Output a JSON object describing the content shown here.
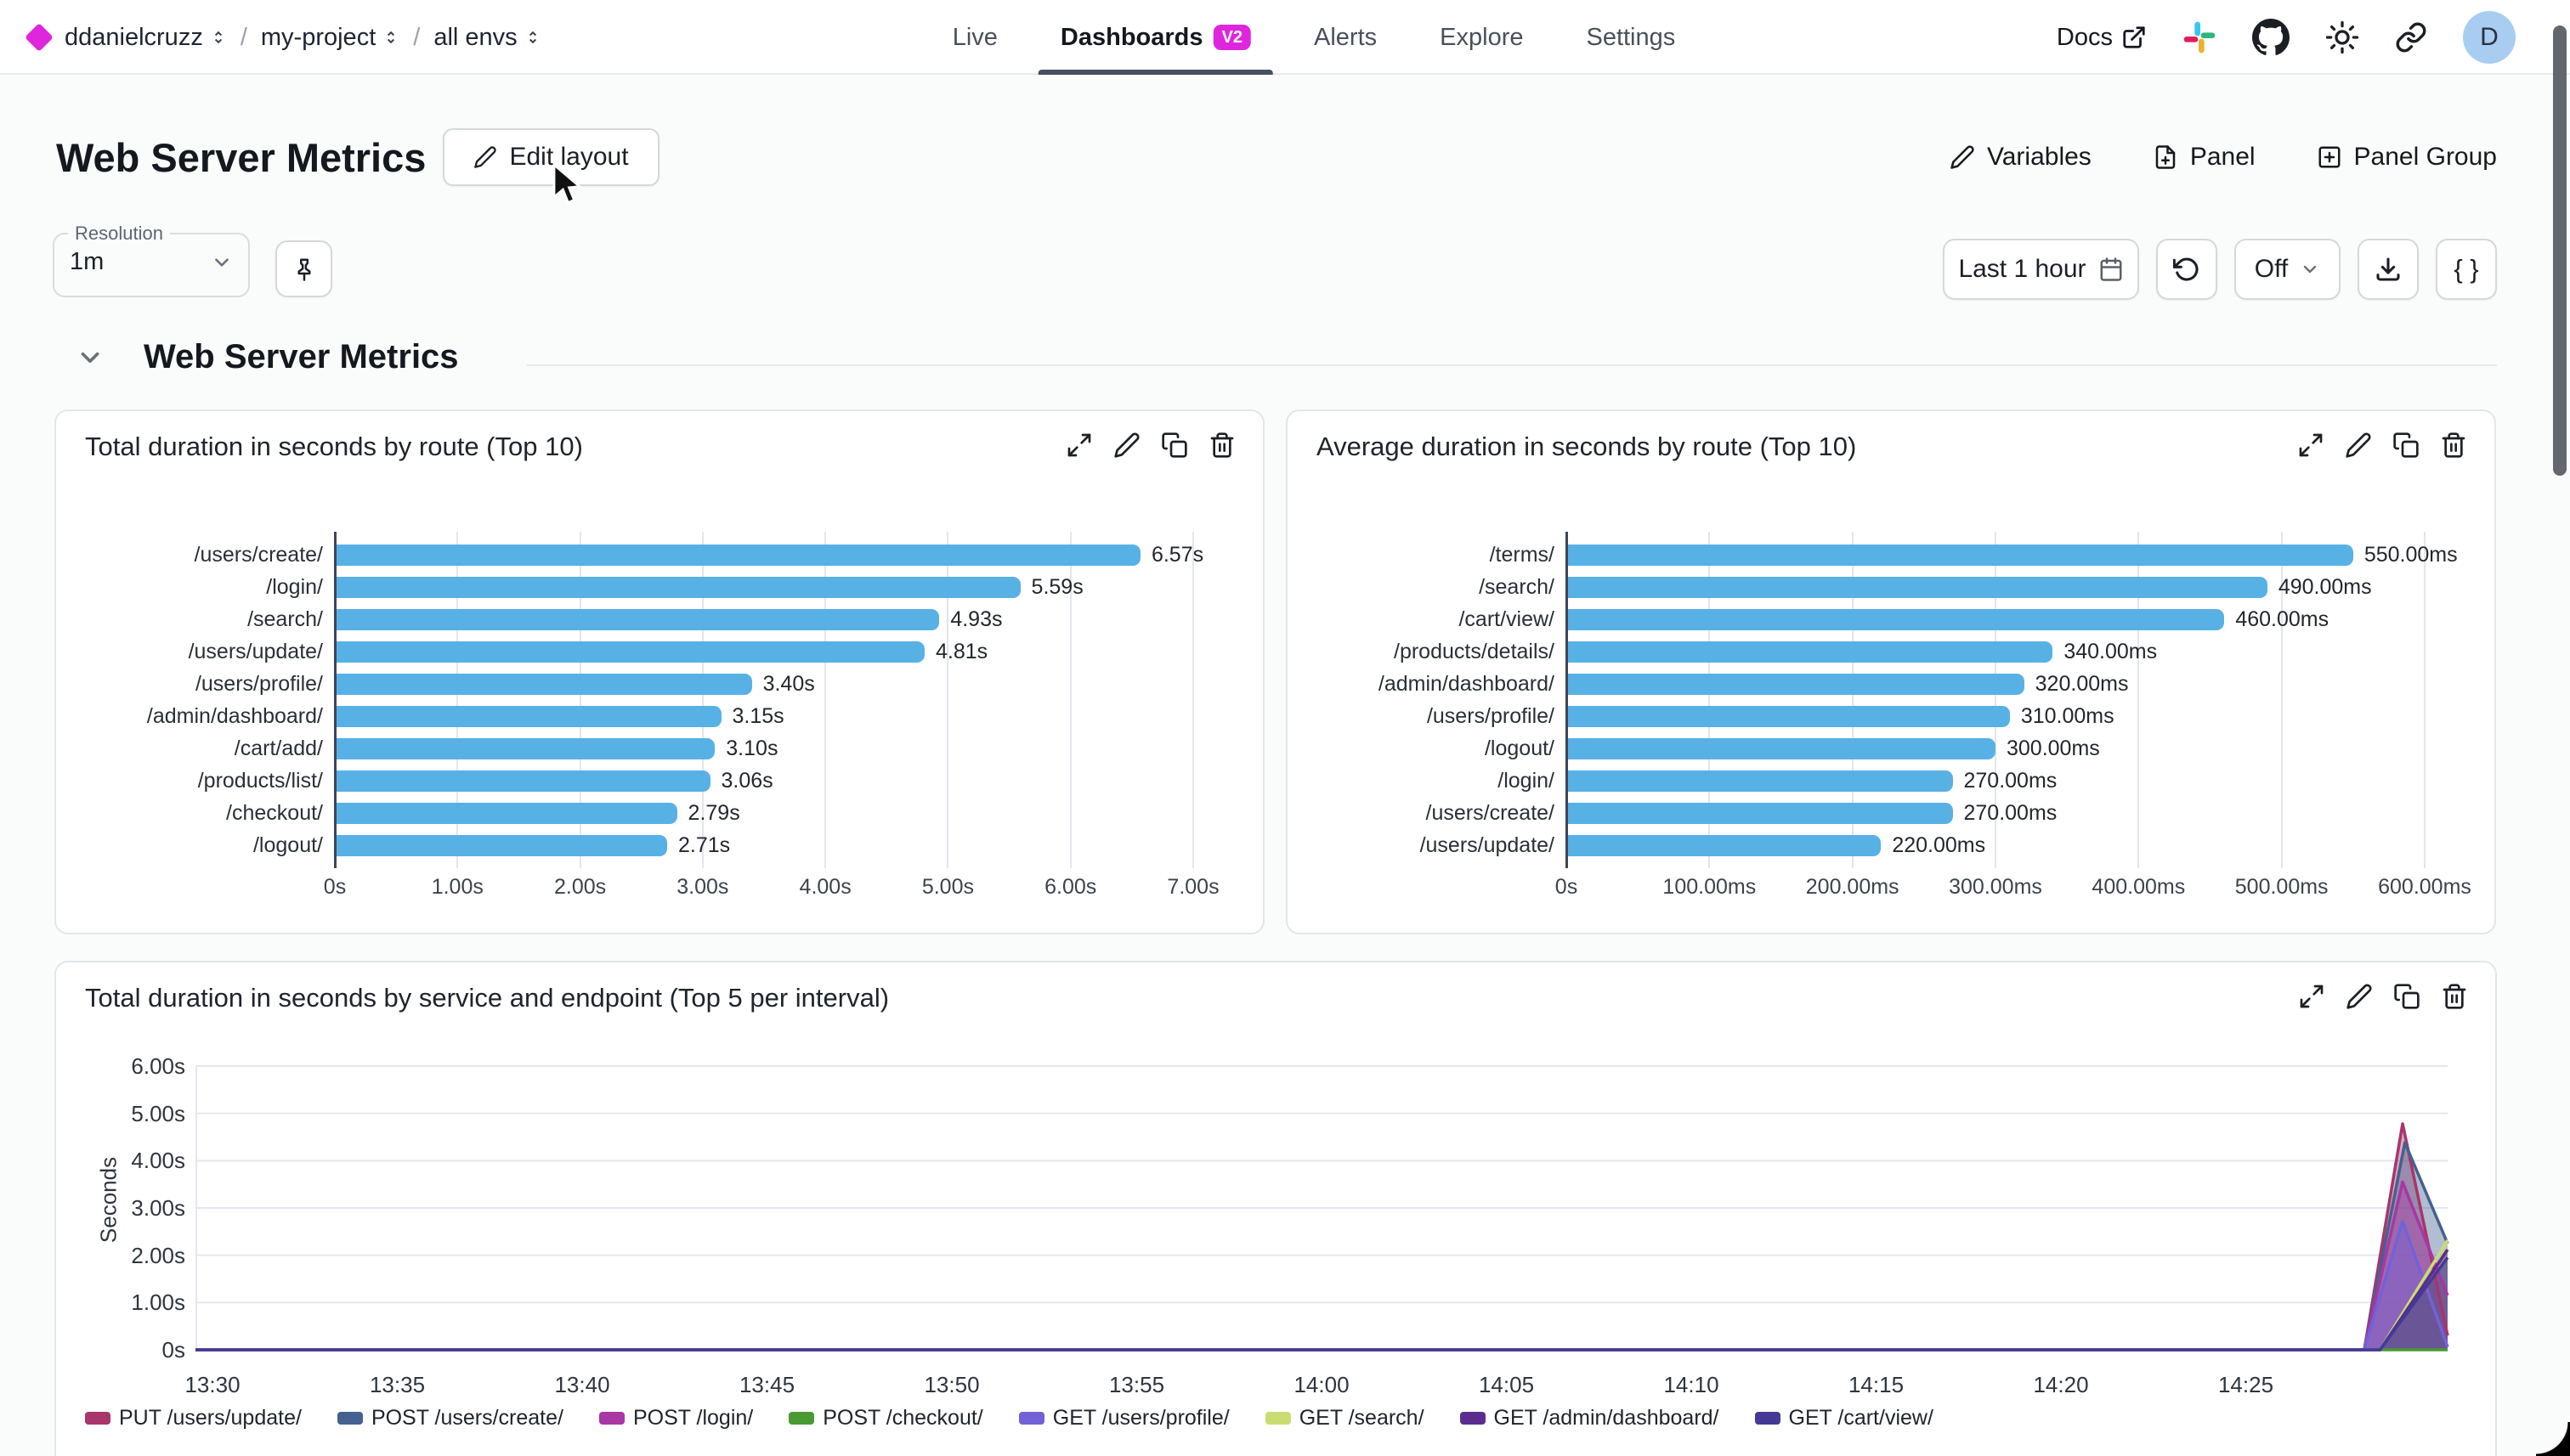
{
  "nav": {
    "breadcrumbs": [
      "ddanielcruzz",
      "my-project",
      "all envs"
    ],
    "tabs": [
      {
        "label": "Live"
      },
      {
        "label": "Dashboards",
        "badge": "V2",
        "active": true
      },
      {
        "label": "Alerts"
      },
      {
        "label": "Explore"
      },
      {
        "label": "Settings"
      }
    ],
    "docs_label": "Docs",
    "avatar_initial": "D"
  },
  "header": {
    "title": "Web Server Metrics",
    "edit_layout": "Edit layout",
    "variables": "Variables",
    "panel": "Panel",
    "panel_group": "Panel Group"
  },
  "toolbar": {
    "resolution_label": "Resolution",
    "resolution_value": "1m",
    "time_range": "Last 1 hour",
    "auto_refresh": "Off",
    "json_button": "{ }"
  },
  "section": {
    "title": "Web Server Metrics"
  },
  "colors": {
    "accent_magenta": "#df26dd",
    "bar_blue": "#57b1e5",
    "active_tab_underline": "#454f61",
    "avatar_bg": "#a9cdf1"
  },
  "icons": [
    "diamond-logo",
    "external-link-icon",
    "slack-icon",
    "github-icon",
    "sun-icon",
    "link-icon",
    "pencil-icon",
    "file-plus-icon",
    "plus-square-icon",
    "pin-icon",
    "calendar-icon",
    "refresh-icon",
    "download-icon",
    "chevron-down-icon",
    "expand-icon",
    "copy-icon",
    "trash-icon"
  ],
  "chart_data": [
    {
      "type": "bar",
      "orientation": "horizontal",
      "title": "Total duration in seconds by route (Top 10)",
      "categories": [
        "/users/create/",
        "/login/",
        "/search/",
        "/users/update/",
        "/users/profile/",
        "/admin/dashboard/",
        "/cart/add/",
        "/products/list/",
        "/checkout/",
        "/logout/"
      ],
      "values": [
        6.57,
        5.59,
        4.93,
        4.81,
        3.4,
        3.15,
        3.1,
        3.06,
        2.79,
        2.71
      ],
      "value_labels": [
        "6.57s",
        "5.59s",
        "4.93s",
        "4.81s",
        "3.40s",
        "3.15s",
        "3.10s",
        "3.06s",
        "2.79s",
        "2.71s"
      ],
      "xlim": [
        0,
        7
      ],
      "x_ticks": [
        "0s",
        "1.00s",
        "2.00s",
        "3.00s",
        "4.00s",
        "5.00s",
        "6.00s",
        "7.00s"
      ],
      "bar_color": "#57b1e5",
      "grid": true
    },
    {
      "type": "bar",
      "orientation": "horizontal",
      "title": "Average duration in seconds by route (Top 10)",
      "categories": [
        "/terms/",
        "/search/",
        "/cart/view/",
        "/products/details/",
        "/admin/dashboard/",
        "/users/profile/",
        "/logout/",
        "/login/",
        "/users/create/",
        "/users/update/"
      ],
      "values": [
        550,
        490,
        460,
        340,
        320,
        310,
        300,
        270,
        270,
        220
      ],
      "value_labels": [
        "550.00ms",
        "490.00ms",
        "460.00ms",
        "340.00ms",
        "320.00ms",
        "310.00ms",
        "300.00ms",
        "270.00ms",
        "270.00ms",
        "220.00ms"
      ],
      "xlim": [
        0,
        600
      ],
      "x_ticks": [
        "0s",
        "100.00ms",
        "200.00ms",
        "300.00ms",
        "400.00ms",
        "500.00ms",
        "600.00ms"
      ],
      "bar_color": "#57b1e5",
      "grid": true
    },
    {
      "type": "area",
      "title": "Total duration in seconds by service and endpoint (Top 5 per interval)",
      "ylabel": "Seconds",
      "ylim": [
        0,
        6
      ],
      "y_ticks": [
        "0s",
        "1.00s",
        "2.00s",
        "3.00s",
        "4.00s",
        "5.00s",
        "6.00s"
      ],
      "x_ticks": [
        "13:30",
        "13:35",
        "13:40",
        "13:45",
        "13:50",
        "13:55",
        "14:00",
        "14:05",
        "14:10",
        "14:15",
        "14:20",
        "14:25"
      ],
      "legend_position": "bottom",
      "grid": true,
      "series": [
        {
          "name": "PUT /users/update/",
          "color": "#a8356b",
          "points": [
            [
              0,
              0
            ],
            [
              0.963,
              0
            ],
            [
              0.98,
              4.78
            ],
            [
              1,
              0.3
            ]
          ]
        },
        {
          "name": "POST /users/create/",
          "color": "#44618f",
          "points": [
            [
              0,
              0
            ],
            [
              0.963,
              0
            ],
            [
              0.981,
              4.38
            ],
            [
              1,
              2.25
            ]
          ]
        },
        {
          "name": "POST /login/",
          "color": "#a836a4",
          "points": [
            [
              0,
              0
            ],
            [
              0.963,
              0
            ],
            [
              0.98,
              3.55
            ],
            [
              1,
              1.15
            ]
          ]
        },
        {
          "name": "POST /checkout/",
          "color": "#4a9a34",
          "points": [
            [
              0,
              0
            ],
            [
              1,
              0
            ]
          ]
        },
        {
          "name": "GET /users/profile/",
          "color": "#7262d8",
          "points": [
            [
              0,
              0
            ],
            [
              0.963,
              0
            ],
            [
              0.98,
              2.72
            ],
            [
              1,
              0.06
            ]
          ]
        },
        {
          "name": "GET /search/",
          "color": "#c9dc74",
          "points": [
            [
              0,
              0
            ],
            [
              0.97,
              0
            ],
            [
              1,
              2.32
            ]
          ]
        },
        {
          "name": "GET /admin/dashboard/",
          "color": "#5b2c8f",
          "points": [
            [
              0,
              0
            ],
            [
              0.97,
              0
            ],
            [
              1,
              2.12
            ]
          ]
        },
        {
          "name": "GET /cart/view/",
          "color": "#443a96",
          "points": [
            [
              0,
              0
            ],
            [
              0.97,
              0
            ],
            [
              1,
              1.95
            ]
          ]
        }
      ]
    }
  ]
}
